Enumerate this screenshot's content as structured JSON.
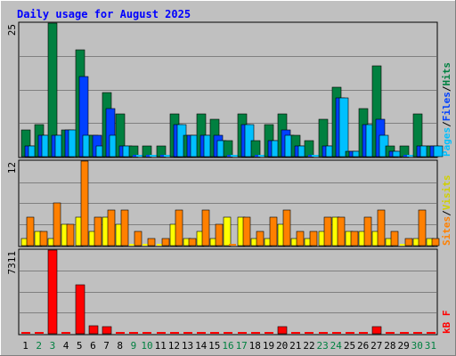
{
  "chart_data": {
    "type": "bar",
    "title": "Daily usage for August 2025",
    "categories": [
      "1",
      "2",
      "3",
      "4",
      "5",
      "6",
      "7",
      "8",
      "9",
      "10",
      "11",
      "12",
      "13",
      "14",
      "15",
      "16",
      "17",
      "18",
      "19",
      "20",
      "21",
      "22",
      "23",
      "24",
      "25",
      "26",
      "27",
      "28",
      "29",
      "30",
      "31"
    ],
    "weekend_days": [
      "2",
      "3",
      "9",
      "10",
      "16",
      "17",
      "23",
      "24",
      "30",
      "31"
    ],
    "panels": [
      {
        "name": "hits-files-pages",
        "ymax": 25,
        "ymax_label": "25",
        "right_labels": [
          "Pages",
          "/",
          "Files",
          "/",
          "Hits"
        ],
        "series": [
          {
            "name": "Hits",
            "color": "#008040",
            "values": [
              5,
              6,
              25,
              5,
              20,
              4,
              12,
              8,
              2,
              2,
              2,
              8,
              4,
              8,
              7,
              3,
              8,
              3,
              6,
              8,
              4,
              3,
              7,
              13,
              1,
              9,
              17,
              2,
              2,
              8,
              2
            ]
          },
          {
            "name": "Files",
            "color": "#0040ff",
            "values": [
              2,
              4,
              4,
              5,
              15,
              4,
              9,
              2,
              0,
              0,
              0,
              6,
              4,
              4,
              4,
              0,
              6,
              0,
              3,
              5,
              2,
              0,
              2,
              11,
              1,
              6,
              7,
              1,
              0,
              2,
              2
            ]
          },
          {
            "name": "Pages",
            "color": "#00c0ff",
            "values": [
              2,
              4,
              4,
              5,
              4,
              2,
              4,
              2,
              0,
              0,
              0,
              6,
              4,
              4,
              3,
              0,
              6,
              0,
              3,
              4,
              2,
              0,
              2,
              11,
              1,
              6,
              4,
              1,
              0,
              2,
              2
            ]
          }
        ]
      },
      {
        "name": "sites-visits",
        "ymax": 12,
        "ymax_label": "12",
        "right_labels": [
          "Sites",
          "/",
          "Visits"
        ],
        "series": [
          {
            "name": "Visits",
            "color": "#ffff00",
            "values": [
              1,
              2,
              1,
              3,
              4,
              2,
              4,
              3,
              0,
              0,
              0,
              3,
              1,
              2,
              1,
              4,
              4,
              1,
              1,
              3,
              1,
              1,
              2,
              4,
              2,
              2,
              2,
              1,
              0,
              1,
              1
            ]
          },
          {
            "name": "Sites",
            "color": "#ff8000",
            "values": [
              4,
              2,
              6,
              3,
              12,
              4,
              5,
              5,
              2,
              1,
              1,
              5,
              1,
              5,
              3,
              0,
              4,
              2,
              4,
              5,
              2,
              2,
              4,
              4,
              2,
              4,
              5,
              2,
              1,
              5,
              1
            ]
          }
        ]
      },
      {
        "name": "kb",
        "ymax": 7311,
        "ymax_label": "7311",
        "right_labels": [
          "kB F"
        ],
        "series": [
          {
            "name": "kB F",
            "color": "#ff0000",
            "values": [
              0,
              0,
              7311,
              0,
              4300,
              700,
              600,
              0,
              0,
              0,
              0,
              0,
              0,
              0,
              0,
              0,
              0,
              0,
              0,
              600,
              0,
              0,
              0,
              0,
              0,
              0,
              600,
              0,
              0,
              0,
              0
            ]
          }
        ]
      }
    ]
  }
}
